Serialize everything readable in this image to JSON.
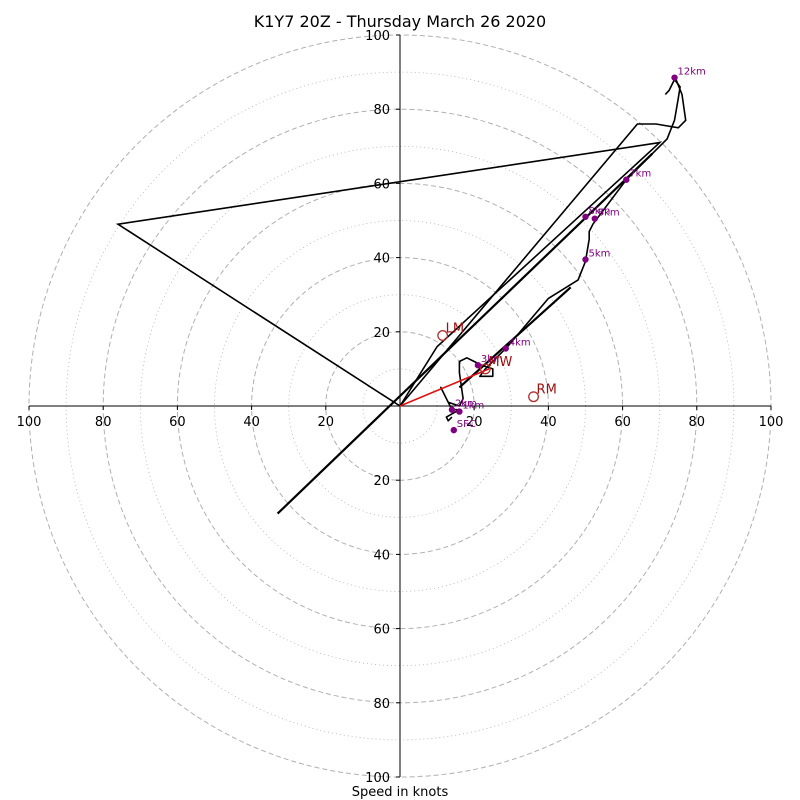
{
  "chart_data": {
    "type": "hodograph",
    "title": "K1Y7 20Z - Thursday March 26 2020",
    "xlabel": "Speed in knots",
    "range": [
      -100,
      100
    ],
    "rings": {
      "major": [
        20,
        40,
        60,
        80,
        100
      ],
      "minor": [
        10,
        30,
        50,
        70,
        90
      ],
      "major_style": "dashed",
      "minor_style": "dotted"
    },
    "ticks": {
      "x": [
        -100,
        -80,
        -60,
        -40,
        -20,
        20,
        40,
        60,
        80,
        100
      ],
      "x_labels": [
        "100",
        "80",
        "60",
        "40",
        "20",
        "20",
        "40",
        "60",
        "80",
        "100"
      ],
      "y": [
        -100,
        -80,
        -60,
        -40,
        -20,
        20,
        40,
        60,
        80,
        100
      ],
      "y_labels": [
        "100",
        "80",
        "60",
        "40",
        "20",
        "20",
        "40",
        "60",
        "80",
        "100"
      ]
    },
    "hodograph_trace": [
      [
        14,
        -3
      ],
      [
        13,
        -4
      ],
      [
        12.5,
        -3
      ],
      [
        16,
        -1
      ],
      [
        14,
        -1
      ],
      [
        11,
        5
      ],
      [
        13,
        1
      ],
      [
        16,
        0
      ],
      [
        17,
        2
      ],
      [
        16,
        9
      ],
      [
        16,
        12
      ],
      [
        18,
        13
      ],
      [
        20,
        12
      ],
      [
        22,
        11
      ],
      [
        25,
        10
      ],
      [
        25,
        9
      ],
      [
        25,
        8
      ],
      [
        21.5,
        8
      ],
      [
        23,
        10
      ],
      [
        29,
        16
      ],
      [
        40,
        29
      ],
      [
        48,
        34
      ],
      [
        50,
        39
      ],
      [
        51,
        45
      ],
      [
        51,
        47
      ],
      [
        52,
        49
      ],
      [
        55,
        53
      ],
      [
        61,
        61
      ],
      [
        68,
        68
      ],
      [
        72,
        72
      ],
      [
        74,
        77
      ],
      [
        74.5,
        80
      ],
      [
        75,
        83
      ],
      [
        75.5,
        86
      ],
      [
        74,
        88
      ],
      [
        72.5,
        85
      ],
      [
        71.5,
        84
      ]
    ],
    "storm_motion_trace": [
      [
        0,
        0
      ],
      [
        64,
        76
      ],
      [
        69,
        76
      ],
      [
        75,
        75
      ],
      [
        77,
        77
      ],
      [
        76,
        84
      ],
      [
        74,
        89
      ]
    ],
    "inflow_triangle": [
      [
        0,
        0
      ],
      [
        -76,
        49
      ],
      [
        70,
        71
      ],
      [
        10,
        16
      ],
      [
        0,
        0
      ]
    ],
    "shear_line": [
      [
        -33,
        -29
      ],
      [
        68,
        68
      ]
    ],
    "shear_segment": [
      [
        16,
        5
      ],
      [
        46,
        32
      ]
    ],
    "mean_wind_vector": [
      [
        0,
        0
      ],
      [
        24,
        10
      ]
    ],
    "height_markers": [
      {
        "label": "SFC",
        "u": 14.5,
        "v": -6.5
      },
      {
        "label": "1km",
        "u": 16,
        "v": -1.5
      },
      {
        "label": "2km",
        "u": 14,
        "v": -1
      },
      {
        "label": "3km",
        "u": 21,
        "v": 11
      },
      {
        "label": "4km",
        "u": 28.5,
        "v": 15.5
      },
      {
        "label": "5km",
        "u": 50,
        "v": 39.5
      },
      {
        "label": "6km",
        "u": 52.5,
        "v": 50.5
      },
      {
        "label": "8km",
        "u": 50,
        "v": 51
      },
      {
        "label": "7km",
        "u": 61,
        "v": 61
      },
      {
        "label": "12km",
        "u": 74,
        "v": 88.5
      }
    ],
    "storm_motions": [
      {
        "label": "LM",
        "u": 11.5,
        "v": 19
      },
      {
        "label": "MW",
        "u": 23,
        "v": 10
      },
      {
        "label": "RM",
        "u": 36,
        "v": 2.5
      }
    ],
    "colors": {
      "trace": "#000000",
      "markers": "#800080",
      "mean_wind": "#dd1111",
      "storm_motion": "#b03030",
      "grid": "#b0b0b0"
    }
  }
}
